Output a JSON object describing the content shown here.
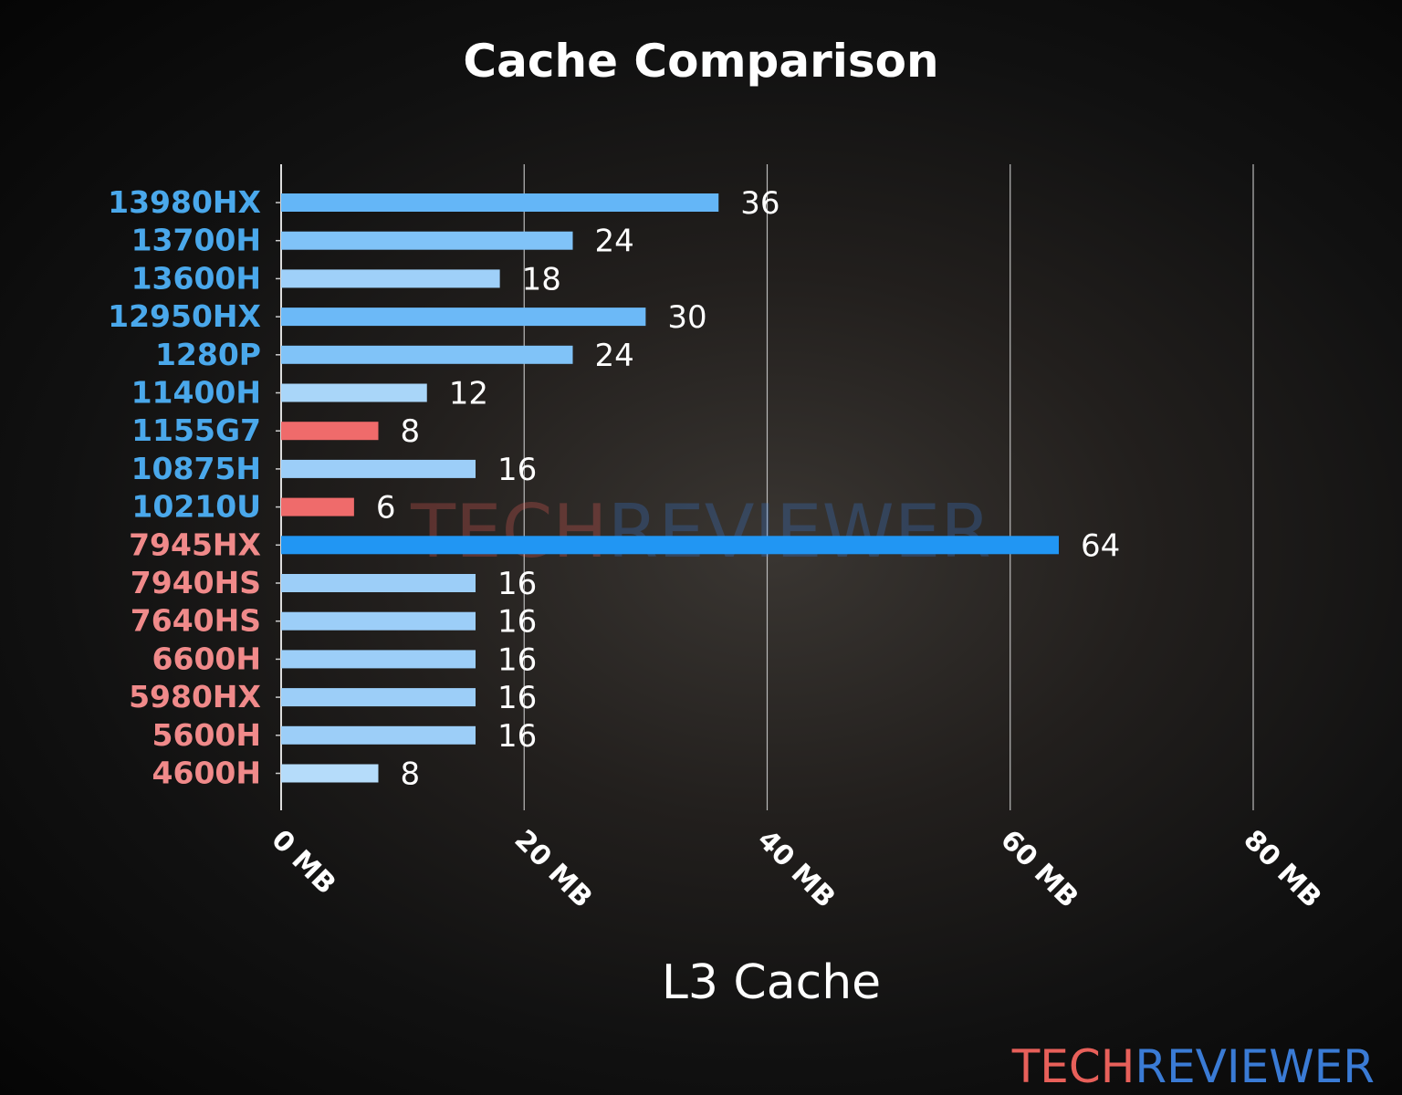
{
  "chart_data": {
    "type": "bar",
    "orientation": "horizontal",
    "title": "Cache Comparison",
    "xlabel": "L3 Cache",
    "ylabel": "",
    "xlim": [
      0,
      80
    ],
    "x_ticks": [
      0,
      20,
      40,
      60,
      80
    ],
    "x_tick_labels": [
      "0 MB",
      "20 MB",
      "40 MB",
      "60 MB",
      "80 MB"
    ],
    "grid": "vertical",
    "categories": [
      "13980HX",
      "13700H",
      "13600H",
      "12950HX",
      "1280P",
      "11400H",
      "1155G7",
      "10875H",
      "10210U",
      "7945HX",
      "7940HS",
      "7640HS",
      "6600H",
      "5980HX",
      "5600H",
      "4600H"
    ],
    "values": [
      36,
      24,
      18,
      30,
      24,
      12,
      8,
      16,
      6,
      64,
      16,
      16,
      16,
      16,
      16,
      8
    ],
    "bar_colors": [
      "#64b6f7",
      "#80c3f8",
      "#9fd0f9",
      "#6cb9f7",
      "#80c3f8",
      "#a9d6f9",
      "#ef6b6b",
      "#9ccef8",
      "#ef6b6b",
      "#2196f3",
      "#9ccef8",
      "#9ccef8",
      "#9ccef8",
      "#9ccef8",
      "#9ccef8",
      "#b5dcfa"
    ],
    "label_colors": [
      "#4aa8eb",
      "#4aa8eb",
      "#4aa8eb",
      "#4aa8eb",
      "#4aa8eb",
      "#4aa8eb",
      "#4aa8eb",
      "#4aa8eb",
      "#4aa8eb",
      "#f08a8a",
      "#f08a8a",
      "#f08a8a",
      "#f08a8a",
      "#f08a8a",
      "#f08a8a",
      "#f08a8a"
    ]
  },
  "watermark": {
    "part1": "TECH",
    "part2": "REVIEWER",
    "color1": "#e8605a",
    "color2": "#3a7bd5"
  }
}
